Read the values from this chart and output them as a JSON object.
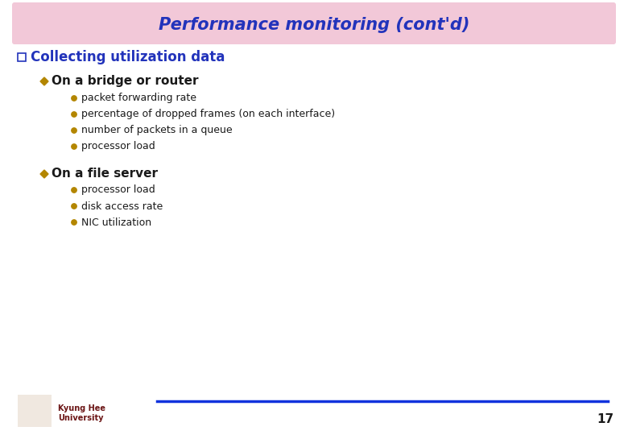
{
  "title": "Performance monitoring (cont'd)",
  "title_color": "#2233bb",
  "title_bg_color": "#f2c8d8",
  "bg_color": "#ffffff",
  "q_bullet_color": "#2233bb",
  "q_bullet_text": "Collecting utilization data",
  "diamond_color": "#b38600",
  "dot_color": "#b38600",
  "sub1_text": "On a bridge or router",
  "sub1_items": [
    "packet forwarding rate",
    "percentage of dropped frames (on each interface)",
    "number of packets in a queue",
    "processor load"
  ],
  "sub2_text": "On a file server",
  "sub2_items": [
    "processor load",
    "disk access rate",
    "NIC utilization"
  ],
  "footer_line_color": "#1133dd",
  "footer_text1": "Kyung Hee",
  "footer_text2": "University",
  "footer_text_color": "#6b1515",
  "page_number": "17",
  "text_color": "#1a1a1a",
  "body_text_color": "#1a1a1a",
  "title_fontsize": 15,
  "q_fontsize": 12,
  "sub_fontsize": 11,
  "item_fontsize": 9
}
